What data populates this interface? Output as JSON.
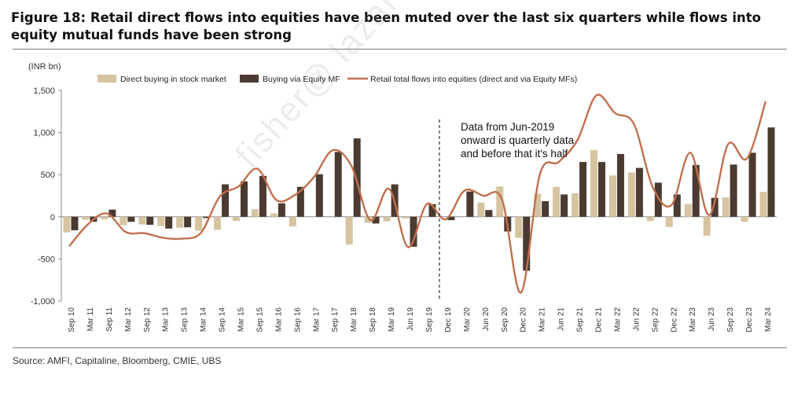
{
  "figure": {
    "title": "Figure 18: Retail direct flows into equities have been muted over the last six quarters while flows into equity mutual funds have been strong",
    "source": "Source: AMFI, Capitaline, Bloomberg, CMIE, UBS",
    "watermark": "fisher@ lazard.com"
  },
  "colors": {
    "direct": "#d6c3a0",
    "mf": "#4b3a30",
    "total": "#c0704f",
    "axis": "#888888",
    "annotation_line": "#333333"
  },
  "chart_data": {
    "type": "bar",
    "unit_label": "(INR bn)",
    "ylim": [
      -1000,
      1500
    ],
    "yticks": [
      {
        "value": -1000,
        "label": "-1,000"
      },
      {
        "value": -500,
        "label": "-500"
      },
      {
        "value": 0,
        "label": "0"
      },
      {
        "value": 500,
        "label": "500"
      },
      {
        "value": 1000,
        "label": "1,000"
      },
      {
        "value": 1500,
        "label": "1,500"
      }
    ],
    "categories": [
      "Sep 10",
      "Mar 11",
      "Sep 11",
      "Mar 12",
      "Sep 12",
      "Mar 13",
      "Sep 13",
      "Mar 14",
      "Sep 14",
      "Mar 15",
      "Sep 15",
      "Mar 16",
      "Sep 16",
      "Mar 17",
      "Sep 17",
      "Mar 18",
      "Sep 18",
      "Mar 19",
      "Jun 19",
      "Sep 19",
      "Dec 19",
      "Mar 20",
      "Jun 20",
      "Sep 20",
      "Dec 20",
      "Mar 21",
      "Jun 21",
      "Sep 21",
      "Dec 21",
      "Mar 22",
      "Jun 22",
      "Sep 22",
      "Dec 22",
      "Mar 23",
      "Jun 23",
      "Sep 23",
      "Dec 23",
      "Mar 24"
    ],
    "legend_placement": "top",
    "series": [
      {
        "name": "Direct buying in stock market",
        "kind": "bar",
        "values": [
          -185,
          -35,
          -30,
          -100,
          -90,
          -110,
          -130,
          -165,
          -155,
          -50,
          90,
          40,
          -115,
          0,
          0,
          -330,
          -70,
          -55,
          -20,
          0,
          0,
          0,
          170,
          360,
          -250,
          275,
          355,
          280,
          790,
          490,
          525,
          -50,
          -120,
          150,
          -225,
          230,
          -60,
          295
        ]
      },
      {
        "name": "Buying via Equity MF",
        "kind": "bar",
        "values": [
          -160,
          -60,
          85,
          -60,
          -95,
          -140,
          -125,
          -15,
          385,
          420,
          485,
          160,
          355,
          505,
          770,
          930,
          -80,
          385,
          -355,
          150,
          -40,
          300,
          80,
          -175,
          -640,
          185,
          265,
          650,
          650,
          745,
          580,
          405,
          265,
          615,
          225,
          620,
          760,
          1060
        ]
      },
      {
        "name": "Retail total flows into equities (direct and via Equity MFs)",
        "kind": "line",
        "values": [
          -350,
          -90,
          40,
          -180,
          -195,
          -250,
          -260,
          -190,
          240,
          360,
          570,
          200,
          260,
          470,
          790,
          600,
          -40,
          330,
          -360,
          150,
          -30,
          310,
          250,
          200,
          -900,
          500,
          650,
          910,
          1440,
          1230,
          1100,
          350,
          140,
          760,
          20,
          860,
          690,
          1370
        ]
      }
    ],
    "annotation": {
      "text_lines": [
        "Data from Jun-2019",
        "onward is quarterly data",
        "and before that it's half"
      ],
      "divider_between": [
        "Sep 19",
        "Dec 19"
      ]
    }
  }
}
